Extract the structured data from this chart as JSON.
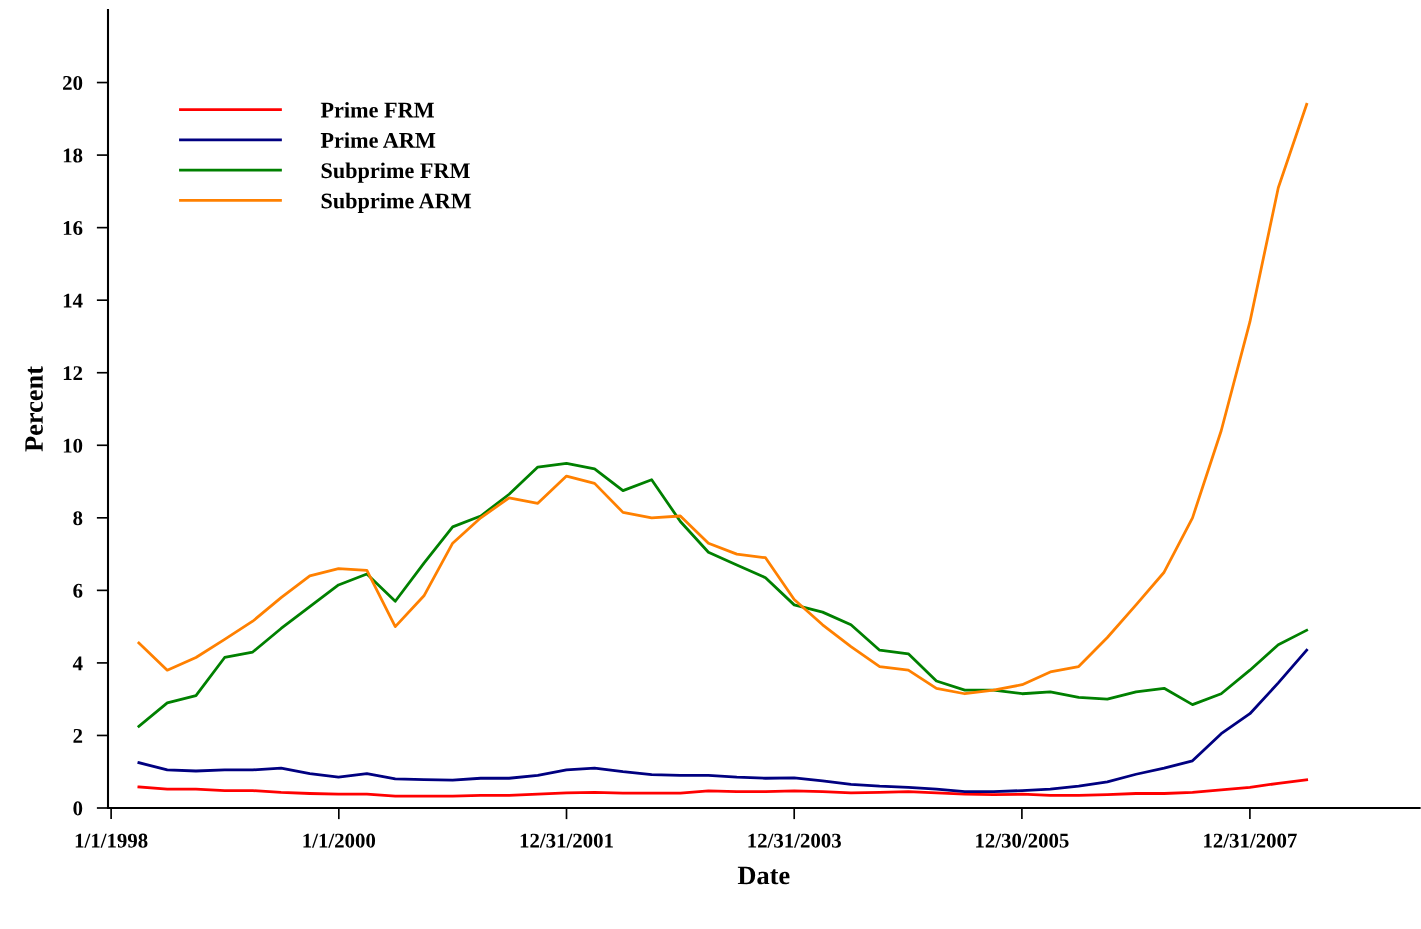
{
  "chart_data": {
    "type": "line",
    "xlabel": "Date",
    "ylabel": "Percent",
    "x": [
      "1998-03-31",
      "1998-06-30",
      "1998-09-30",
      "1998-12-31",
      "1999-03-31",
      "1999-06-30",
      "1999-09-30",
      "1999-12-31",
      "2000-03-31",
      "2000-06-30",
      "2000-09-30",
      "2000-12-31",
      "2001-03-31",
      "2001-06-30",
      "2001-09-30",
      "2001-12-31",
      "2002-03-31",
      "2002-06-30",
      "2002-09-30",
      "2002-12-31",
      "2003-03-31",
      "2003-06-30",
      "2003-09-30",
      "2003-12-31",
      "2004-03-31",
      "2004-06-30",
      "2004-09-30",
      "2004-12-31",
      "2005-03-31",
      "2005-06-30",
      "2005-09-30",
      "2005-12-31",
      "2006-03-31",
      "2006-06-30",
      "2006-09-30",
      "2006-12-31",
      "2007-03-31",
      "2007-06-30",
      "2007-09-30",
      "2007-12-31",
      "2008-03-31",
      "2008-06-30"
    ],
    "series": [
      {
        "name": "Prime FRM",
        "color": "#ff0000",
        "values": [
          0.58,
          0.52,
          0.52,
          0.48,
          0.48,
          0.43,
          0.4,
          0.38,
          0.38,
          0.33,
          0.33,
          0.33,
          0.35,
          0.35,
          0.38,
          0.42,
          0.43,
          0.41,
          0.41,
          0.41,
          0.47,
          0.45,
          0.45,
          0.47,
          0.45,
          0.42,
          0.43,
          0.45,
          0.42,
          0.38,
          0.37,
          0.38,
          0.35,
          0.35,
          0.37,
          0.4,
          0.4,
          0.43,
          0.5,
          0.57,
          0.68,
          0.78
        ]
      },
      {
        "name": "Prime ARM",
        "color": "#000080",
        "values": [
          1.25,
          1.05,
          1.02,
          1.05,
          1.05,
          1.1,
          0.95,
          0.85,
          0.95,
          0.8,
          0.78,
          0.77,
          0.82,
          0.82,
          0.9,
          1.05,
          1.1,
          1.0,
          0.92,
          0.9,
          0.9,
          0.85,
          0.82,
          0.83,
          0.75,
          0.65,
          0.6,
          0.57,
          0.52,
          0.45,
          0.45,
          0.48,
          0.52,
          0.6,
          0.72,
          0.93,
          1.1,
          1.3,
          2.05,
          2.6,
          3.45,
          4.35
        ]
      },
      {
        "name": "Subprime FRM",
        "color": "#008000",
        "values": [
          2.25,
          2.9,
          3.1,
          4.15,
          4.3,
          4.95,
          5.55,
          6.15,
          6.45,
          5.7,
          6.75,
          7.75,
          8.05,
          8.65,
          9.4,
          9.5,
          9.35,
          8.75,
          9.05,
          7.9,
          7.05,
          6.7,
          6.35,
          5.6,
          5.4,
          5.05,
          4.35,
          4.25,
          3.5,
          3.25,
          3.25,
          3.15,
          3.2,
          3.05,
          3.0,
          3.2,
          3.3,
          2.85,
          3.15,
          3.8,
          4.5,
          4.9
        ]
      },
      {
        "name": "Subprime ARM",
        "color": "#ff8000",
        "values": [
          4.55,
          3.8,
          4.15,
          4.65,
          5.15,
          5.8,
          6.4,
          6.6,
          6.55,
          5.0,
          5.85,
          7.3,
          8.0,
          8.55,
          8.4,
          9.15,
          8.95,
          8.15,
          8.0,
          8.05,
          7.3,
          7.0,
          6.9,
          5.75,
          5.05,
          4.45,
          3.9,
          3.8,
          3.3,
          3.15,
          3.25,
          3.4,
          3.75,
          3.9,
          4.7,
          5.6,
          6.5,
          8.0,
          10.4,
          13.4,
          17.1,
          19.4
        ]
      }
    ],
    "xlim": [
      "1997-12-22",
      "2009-06-27"
    ],
    "xticks": [
      {
        "value": "1998-01-01",
        "label": "1/1/1998"
      },
      {
        "value": "2000-01-01",
        "label": "1/1/2000"
      },
      {
        "value": "2001-12-31",
        "label": "12/31/2001"
      },
      {
        "value": "2003-12-31",
        "label": "12/31/2003"
      },
      {
        "value": "2005-12-30",
        "label": "12/30/2005"
      },
      {
        "value": "2007-12-31",
        "label": "12/31/2007"
      }
    ],
    "ylim": [
      0,
      22
    ],
    "yticks": [
      0,
      2,
      4,
      6,
      8,
      10,
      12,
      14,
      16,
      18,
      20
    ],
    "legend": "top left",
    "grid": false,
    "marker": "none",
    "line_style": "solid"
  }
}
